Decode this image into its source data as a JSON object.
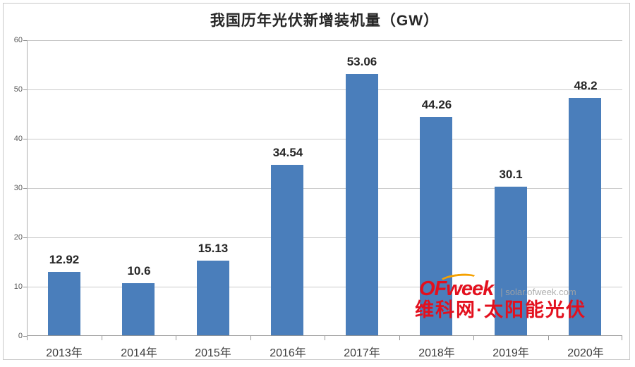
{
  "title": "我国历年光伏新增装机量（GW）",
  "chart_data": {
    "type": "bar",
    "title": "我国历年光伏新增装机量（GW）",
    "categories": [
      "2013年",
      "2014年",
      "2015年",
      "2016年",
      "2017年",
      "2018年",
      "2019年",
      "2020年"
    ],
    "values": [
      12.92,
      10.6,
      15.13,
      34.54,
      53.06,
      44.26,
      30.1,
      48.2
    ],
    "value_labels": [
      "12.92",
      "10.6",
      "15.13",
      "34.54",
      "53.06",
      "44.26",
      "30.1",
      "48.2"
    ],
    "xlabel": "",
    "ylabel": "",
    "ylim": [
      0,
      60
    ],
    "yticks": [
      0,
      10,
      20,
      30,
      40,
      50,
      60
    ],
    "grid": true,
    "legend": false,
    "bar_color": "#4a7ebb",
    "gridline_color": "#c9c9c9"
  },
  "watermark": {
    "logo_text": "OFweek",
    "separator": "|",
    "site_text": "solar.ofweek.com",
    "subtitle": "维科网·太阳能光伏",
    "logo_color": "#e3101e",
    "arc_color": "#f5a100",
    "site_color": "#a5a5a5"
  }
}
